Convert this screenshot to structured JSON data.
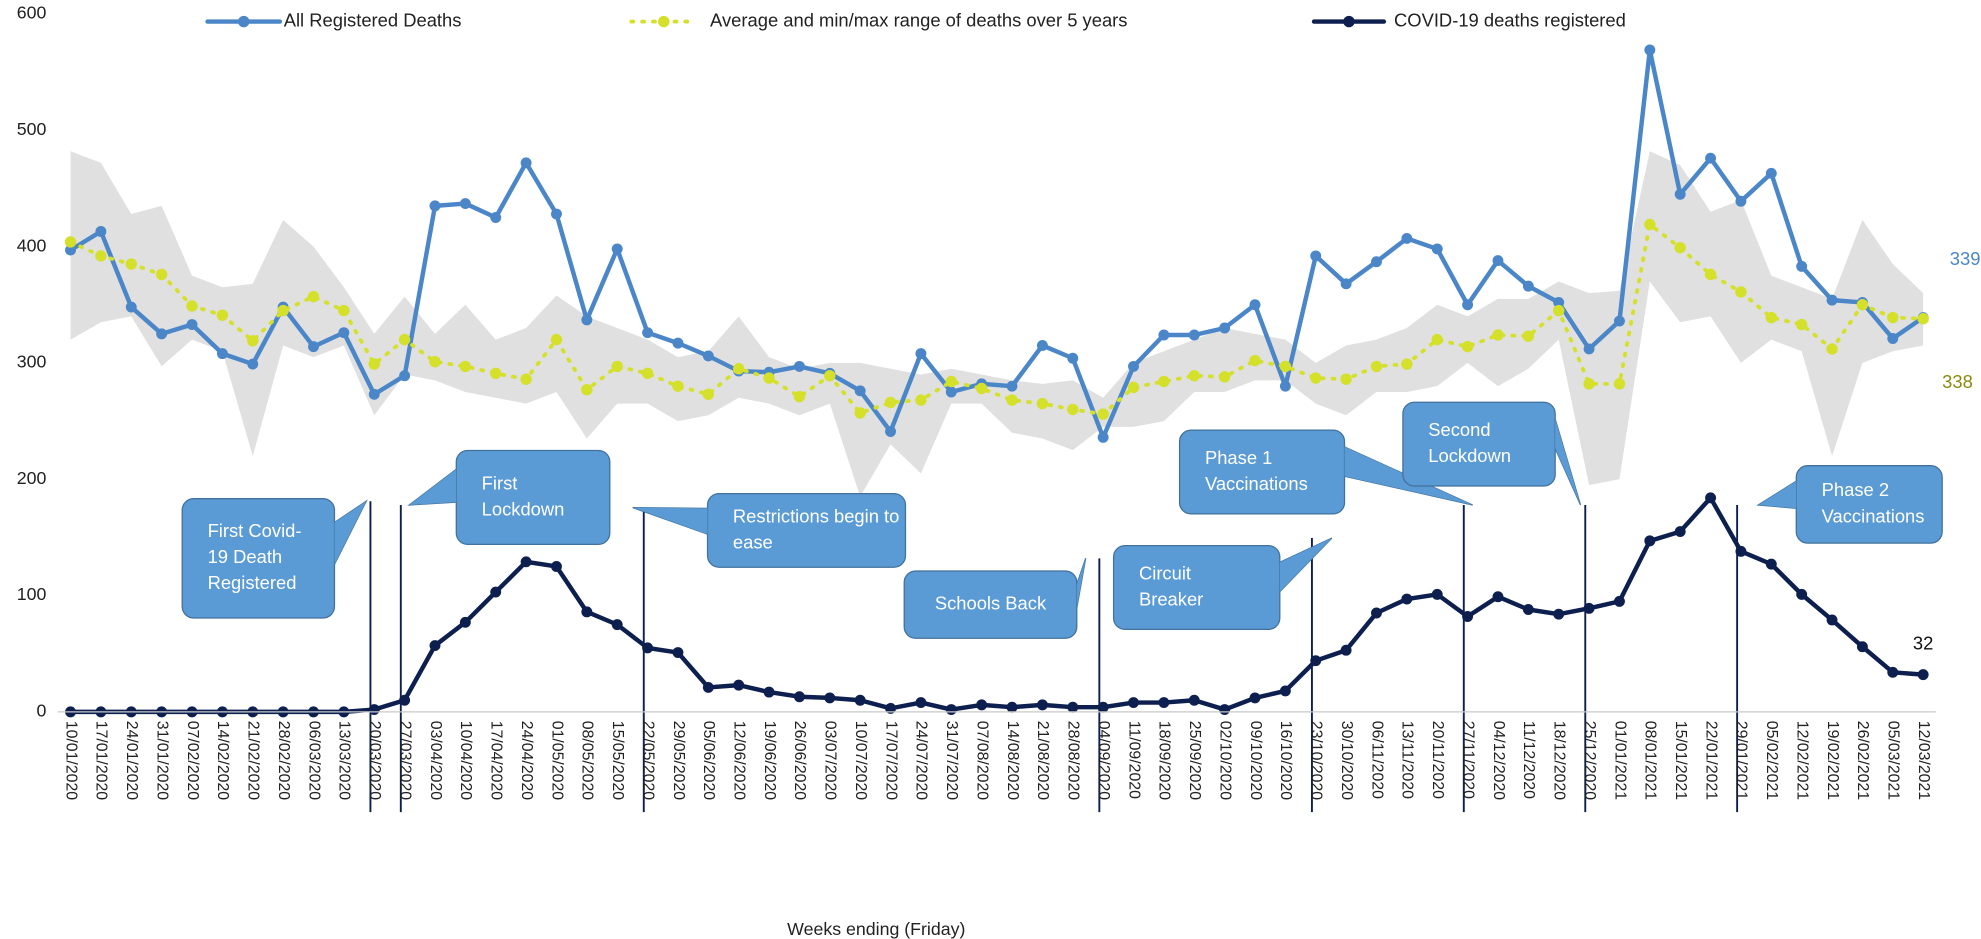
{
  "chart_data": {
    "type": "line",
    "x_label": "Weeks ending (Friday)",
    "categories": [
      "10/01/2020",
      "17/01/2020",
      "24/01/2020",
      "31/01/2020",
      "07/02/2020",
      "14/02/2020",
      "21/02/2020",
      "28/02/2020",
      "06/03/2020",
      "13/03/2020",
      "20/03/2020",
      "27/03/2020",
      "03/04/2020",
      "10/04/2020",
      "17/04/2020",
      "24/04/2020",
      "01/05/2020",
      "08/05/2020",
      "15/05/2020",
      "22/05/2020",
      "29/05/2020",
      "05/06/2020",
      "12/06/2020",
      "19/06/2020",
      "26/06/2020",
      "03/07/2020",
      "10/07/2020",
      "17/07/2020",
      "24/07/2020",
      "31/07/2020",
      "07/08/2020",
      "14/08/2020",
      "21/08/2020",
      "28/08/2020",
      "04/09/2020",
      "11/09/2020",
      "18/09/2020",
      "25/09/2020",
      "02/10/2020",
      "09/10/2020",
      "16/10/2020",
      "23/10/2020",
      "30/10/2020",
      "06/11/2020",
      "13/11/2020",
      "20/11/2020",
      "27/11/2020",
      "04/12/2020",
      "11/12/2020",
      "18/12/2020",
      "25/12/2020",
      "01/01/2021",
      "08/01/2021",
      "15/01/2021",
      "22/01/2021",
      "29/01/2021",
      "05/02/2021",
      "12/02/2021",
      "19/02/2021",
      "26/02/2021",
      "05/03/2021",
      "12/03/2021"
    ],
    "series": [
      {
        "name": "All Registered Deaths",
        "color": "#4a86c8",
        "line_style": "solid",
        "end_label_color": "#4a86c8",
        "values": [
          397,
          413,
          348,
          325,
          333,
          308,
          299,
          348,
          314,
          326,
          273,
          289,
          435,
          437,
          425,
          472,
          428,
          337,
          398,
          326,
          317,
          306,
          293,
          292,
          297,
          291,
          276,
          241,
          308,
          275,
          282,
          280,
          315,
          304,
          236,
          297,
          324,
          324,
          330,
          350,
          280,
          392,
          368,
          387,
          407,
          398,
          350,
          388,
          366,
          352,
          312,
          336,
          569,
          445,
          476,
          439,
          463,
          383,
          354,
          352,
          321,
          339
        ]
      },
      {
        "name": "Average and min/max range of deaths over 5 years",
        "color": "#d4e02a",
        "line_style": "dotted",
        "end_label_color": "#8a8a10",
        "values": [
          404,
          392,
          385,
          376,
          349,
          341,
          319,
          345,
          357,
          345,
          299,
          320,
          301,
          297,
          291,
          286,
          320,
          277,
          297,
          291,
          280,
          273,
          295,
          287,
          271,
          289,
          257,
          266,
          268,
          284,
          278,
          268,
          265,
          260,
          256,
          279,
          284,
          289,
          288,
          302,
          297,
          287,
          286,
          297,
          299,
          320,
          314,
          324,
          323,
          345,
          282,
          282,
          419,
          399,
          376,
          361,
          339,
          333,
          312,
          350,
          339,
          338
        ]
      },
      {
        "name": "COVID-19 deaths registered",
        "color": "#0d1f4f",
        "line_style": "solid",
        "end_label_color": "#111111",
        "values": [
          0,
          0,
          0,
          0,
          0,
          0,
          0,
          0,
          0,
          0,
          2,
          10,
          57,
          77,
          103,
          129,
          125,
          86,
          75,
          55,
          51,
          21,
          23,
          17,
          13,
          12,
          10,
          3,
          8,
          2,
          6,
          4,
          6,
          4,
          4,
          8,
          8,
          10,
          2,
          12,
          18,
          44,
          53,
          85,
          97,
          101,
          82,
          99,
          88,
          84,
          89,
          95,
          147,
          155,
          184,
          138,
          127,
          101,
          79,
          56,
          34,
          32
        ]
      }
    ],
    "range": {
      "color": "#e0e0e0",
      "max": [
        482,
        472,
        428,
        435,
        375,
        365,
        368,
        423,
        400,
        365,
        325,
        357,
        325,
        350,
        320,
        330,
        358,
        340,
        330,
        320,
        305,
        310,
        340,
        305,
        295,
        300,
        300,
        295,
        290,
        295,
        290,
        285,
        282,
        285,
        270,
        300,
        310,
        320,
        330,
        325,
        320,
        300,
        315,
        320,
        330,
        350,
        340,
        355,
        355,
        370,
        360,
        362,
        482,
        470,
        430,
        440,
        375,
        365,
        355,
        423,
        385,
        360
      ],
      "min": [
        320,
        335,
        340,
        297,
        320,
        310,
        220,
        315,
        305,
        315,
        255,
        290,
        285,
        275,
        270,
        265,
        275,
        235,
        265,
        265,
        250,
        255,
        270,
        265,
        255,
        265,
        185,
        230,
        205,
        265,
        265,
        240,
        235,
        225,
        245,
        245,
        250,
        275,
        275,
        285,
        285,
        265,
        255,
        275,
        275,
        280,
        300,
        280,
        295,
        320,
        195,
        200,
        370,
        335,
        340,
        300,
        320,
        310,
        220,
        300,
        310,
        315
      ]
    },
    "ylim": [
      0,
      600
    ],
    "yticks": [
      0,
      100,
      200,
      300,
      400,
      500,
      600
    ],
    "grid": false,
    "annotations": [
      {
        "lines": [
          "First Covid-",
          "19 Death",
          "Registered"
        ],
        "x": "20/03/2020"
      },
      {
        "lines": [
          "First",
          "Lockdown"
        ],
        "x": "27/03/2020"
      },
      {
        "lines": [
          "Restrictions  begin to",
          "ease"
        ],
        "x": "22/05/2020"
      },
      {
        "lines": [
          "Schools Back"
        ],
        "x": "04/09/2020"
      },
      {
        "lines": [
          "Circuit",
          "Breaker"
        ],
        "x": "23/10/2020"
      },
      {
        "lines": [
          "Phase 1",
          "Vaccinations"
        ],
        "x": "27/11/2020"
      },
      {
        "lines": [
          "Second",
          "Lockdown"
        ],
        "x": "25/12/2020"
      },
      {
        "lines": [
          "Phase 2",
          "Vaccinations"
        ],
        "x": "29/01/2021"
      }
    ],
    "annotation_color": "#5b9bd5"
  }
}
